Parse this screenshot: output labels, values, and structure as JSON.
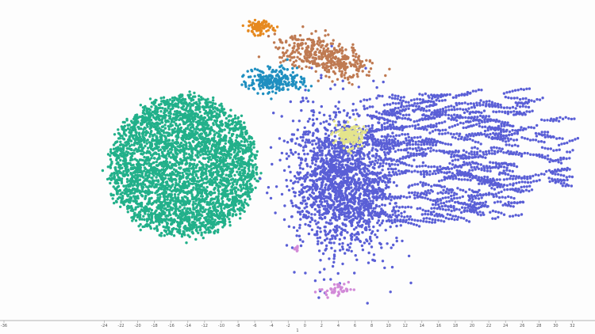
{
  "chart_data": {
    "type": "scatter",
    "title": "",
    "xlabel": "1",
    "ylabel": "",
    "xlim": [
      -36,
      33
    ],
    "ylim": [
      -20,
      29
    ],
    "grid": false,
    "legend": "none",
    "x_ticks": [
      -36,
      -24,
      -22,
      -20,
      -18,
      -16,
      -14,
      -12,
      -10,
      -8,
      -6,
      -4,
      -2,
      0,
      2,
      4,
      6,
      8,
      10,
      12,
      14,
      16,
      18,
      20,
      22,
      24,
      26,
      28,
      30,
      32
    ],
    "clusters": [
      {
        "color": "#22b08a",
        "center": [
          -14.5,
          3.5
        ],
        "spread": [
          8.8,
          12.0
        ],
        "count": 3600,
        "shape": "ellipse"
      },
      {
        "color": "#5a5fd6",
        "center": [
          4.5,
          1.0
        ],
        "spread": [
          5.5,
          11.0
        ],
        "count": 1800,
        "shape": "gauss"
      },
      {
        "color": "#5a5fd6",
        "center": [
          16.5,
          5.0
        ],
        "spread": [
          9.5,
          11.0
        ],
        "count": 1700,
        "shape": "strings"
      },
      {
        "color": "#5a5fd6",
        "center": [
          29.5,
          6.0
        ],
        "spread": [
          2.0,
          6.0
        ],
        "count": 120,
        "shape": "strings"
      },
      {
        "color": "#bf7a52",
        "center": [
          2.5,
          22.0
        ],
        "spread": [
          5.0,
          2.6
        ],
        "count": 420,
        "shape": "tilted"
      },
      {
        "color": "#1f8fc0",
        "center": [
          -3.5,
          18.0
        ],
        "spread": [
          3.2,
          2.0
        ],
        "count": 230,
        "shape": "gauss"
      },
      {
        "color": "#e6891f",
        "center": [
          -5.5,
          27.0
        ],
        "spread": [
          1.4,
          1.0
        ],
        "count": 90,
        "shape": "gauss"
      },
      {
        "color": "#e4e48c",
        "center": [
          5.5,
          8.8
        ],
        "spread": [
          1.5,
          1.8
        ],
        "count": 160,
        "shape": "gauss"
      },
      {
        "color": "#d28ad8",
        "center": [
          4.0,
          -17.5
        ],
        "spread": [
          1.6,
          1.0
        ],
        "count": 45,
        "shape": "gauss"
      },
      {
        "color": "#d28ad8",
        "center": [
          -1.0,
          -10.5
        ],
        "spread": [
          0.4,
          0.4
        ],
        "count": 8,
        "shape": "gauss"
      }
    ]
  }
}
